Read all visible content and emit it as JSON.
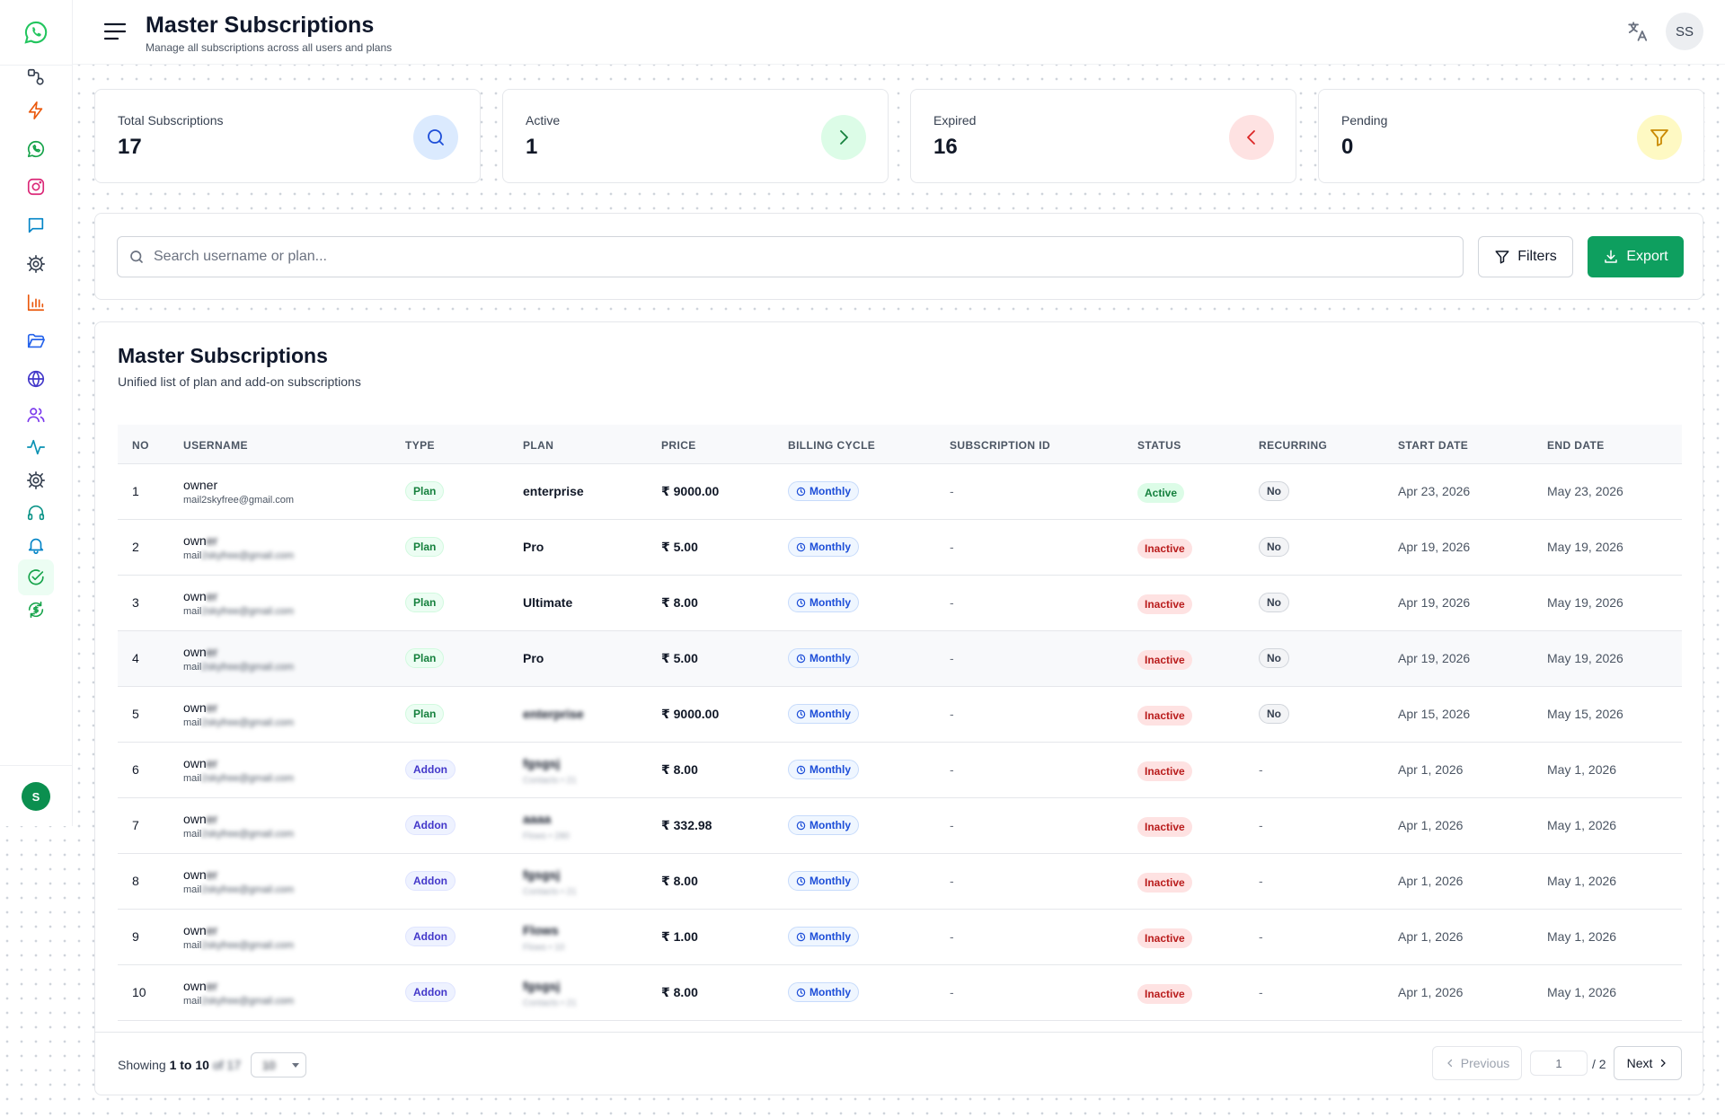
{
  "header": {
    "title": "Master Subscriptions",
    "subtitle": "Manage all subscriptions across all users and plans",
    "user_initials": "SS"
  },
  "sidebar": {
    "avatar_initial": "S",
    "items": [
      {
        "name": "sidebar-item-workflows",
        "icon": "workflow-icon",
        "color": "#374151"
      },
      {
        "name": "sidebar-item-automation",
        "icon": "lightning-icon",
        "color": "#ea580c"
      },
      {
        "name": "sidebar-item-whatsapp",
        "icon": "whatsapp-icon",
        "color": "#16a34a"
      },
      {
        "name": "sidebar-item-instagram",
        "icon": "instagram-icon",
        "color": "#db2777"
      },
      {
        "name": "sidebar-item-messages",
        "icon": "chat-icon",
        "color": "#0284c7"
      },
      {
        "name": "sidebar-item-settings",
        "icon": "gear-icon",
        "color": "#374151"
      },
      {
        "name": "sidebar-item-analytics",
        "icon": "bar-chart-icon",
        "color": "#ea580c"
      },
      {
        "name": "sidebar-item-files",
        "icon": "folder-icon",
        "color": "#2563eb"
      },
      {
        "name": "sidebar-item-web",
        "icon": "globe-icon",
        "color": "#4338ca"
      },
      {
        "name": "sidebar-item-users",
        "icon": "users-icon",
        "color": "#7c3aed"
      },
      {
        "name": "sidebar-item-activity",
        "icon": "activity-icon",
        "color": "#0891b2"
      },
      {
        "name": "sidebar-item-config",
        "icon": "gear-icon",
        "color": "#374151"
      },
      {
        "name": "sidebar-item-support",
        "icon": "headset-icon",
        "color": "#0d9488"
      },
      {
        "name": "sidebar-item-notifications",
        "icon": "bell-icon",
        "color": "#0284c7"
      },
      {
        "name": "sidebar-item-subscriptions",
        "icon": "check-circle-icon",
        "color": "#16a34a"
      },
      {
        "name": "sidebar-item-billing",
        "icon": "money-cycle-icon",
        "color": "#16a34a"
      }
    ]
  },
  "stats": [
    {
      "label": "Total Subscriptions",
      "value": "17",
      "icon": "search-icon",
      "bg": "#dbeafe",
      "fg": "#1d4ed8"
    },
    {
      "label": "Active",
      "value": "1",
      "icon": "chevron-right-icon",
      "bg": "#dcfce7",
      "fg": "#15803d"
    },
    {
      "label": "Expired",
      "value": "16",
      "icon": "chevron-left-icon",
      "bg": "#fee2e2",
      "fg": "#dc2626"
    },
    {
      "label": "Pending",
      "value": "0",
      "icon": "filter-icon",
      "bg": "#fef9c3",
      "fg": "#ca8a04"
    }
  ],
  "search": {
    "placeholder": "Search username or plan...",
    "value": "",
    "filters_label": "Filters",
    "export_label": "Export"
  },
  "table": {
    "title": "Master Subscriptions",
    "subtitle": "Unified list of plan and add-on subscriptions",
    "columns": [
      "NO",
      "USERNAME",
      "TYPE",
      "PLAN",
      "PRICE",
      "BILLING CYCLE",
      "SUBSCRIPTION ID",
      "STATUS",
      "RECURRING",
      "START DATE",
      "END DATE"
    ],
    "rows": [
      {
        "no": "1",
        "username": "owner",
        "email": "mail2skyfree@gmail.com",
        "blurred": false,
        "type": "Plan",
        "plan": "enterprise",
        "plan_sub": "",
        "plan_blur": false,
        "price": "₹ 9000.00",
        "cycle": "Monthly",
        "sub_id": "-",
        "status": "Active",
        "recurring": "No",
        "start": "Apr 23, 2026",
        "end": "May 23, 2026"
      },
      {
        "no": "2",
        "username": "owner",
        "email": "mail2skyfree@gmail.com",
        "blurred": true,
        "type": "Plan",
        "plan": "Pro",
        "plan_sub": "",
        "plan_blur": false,
        "price": "₹ 5.00",
        "cycle": "Monthly",
        "sub_id": "-",
        "status": "Inactive",
        "recurring": "No",
        "start": "Apr 19, 2026",
        "end": "May 19, 2026"
      },
      {
        "no": "3",
        "username": "owner",
        "email": "mail2skyfree@gmail.com",
        "blurred": true,
        "type": "Plan",
        "plan": "Ultimate",
        "plan_sub": "",
        "plan_blur": false,
        "price": "₹ 8.00",
        "cycle": "Monthly",
        "sub_id": "-",
        "status": "Inactive",
        "recurring": "No",
        "start": "Apr 19, 2026",
        "end": "May 19, 2026"
      },
      {
        "no": "4",
        "username": "owner",
        "email": "mail2skyfree@gmail.com",
        "blurred": true,
        "type": "Plan",
        "plan": "Pro",
        "plan_sub": "",
        "plan_blur": false,
        "price": "₹ 5.00",
        "cycle": "Monthly",
        "sub_id": "-",
        "status": "Inactive",
        "recurring": "No",
        "start": "Apr 19, 2026",
        "end": "May 19, 2026"
      },
      {
        "no": "5",
        "username": "owner",
        "email": "mail2skyfree@gmail.com",
        "blurred": true,
        "type": "Plan",
        "plan": "enterprise",
        "plan_sub": "",
        "plan_blur": true,
        "price": "₹ 9000.00",
        "cycle": "Monthly",
        "sub_id": "-",
        "status": "Inactive",
        "recurring": "No",
        "start": "Apr 15, 2026",
        "end": "May 15, 2026"
      },
      {
        "no": "6",
        "username": "owner",
        "email": "mail2skyfree@gmail.com",
        "blurred": true,
        "type": "Addon",
        "plan": "fgsgsj",
        "plan_sub": "Contacts • 21",
        "plan_blur": true,
        "price": "₹ 8.00",
        "cycle": "Monthly",
        "sub_id": "-",
        "status": "Inactive",
        "recurring": "-",
        "start": "Apr 1, 2026",
        "end": "May 1, 2026"
      },
      {
        "no": "7",
        "username": "owner",
        "email": "mail2skyfree@gmail.com",
        "blurred": true,
        "type": "Addon",
        "plan": "aaaa",
        "plan_sub": "Flows • 280",
        "plan_blur": true,
        "price": "₹ 332.98",
        "cycle": "Monthly",
        "sub_id": "-",
        "status": "Inactive",
        "recurring": "-",
        "start": "Apr 1, 2026",
        "end": "May 1, 2026"
      },
      {
        "no": "8",
        "username": "owner",
        "email": "mail2skyfree@gmail.com",
        "blurred": true,
        "type": "Addon",
        "plan": "fgsgsj",
        "plan_sub": "Contacts • 21",
        "plan_blur": true,
        "price": "₹ 8.00",
        "cycle": "Monthly",
        "sub_id": "-",
        "status": "Inactive",
        "recurring": "-",
        "start": "Apr 1, 2026",
        "end": "May 1, 2026"
      },
      {
        "no": "9",
        "username": "owner",
        "email": "mail2skyfree@gmail.com",
        "blurred": true,
        "type": "Addon",
        "plan": "Flows",
        "plan_sub": "Flows • 10",
        "plan_blur": true,
        "price": "₹ 1.00",
        "cycle": "Monthly",
        "sub_id": "-",
        "status": "Inactive",
        "recurring": "-",
        "start": "Apr 1, 2026",
        "end": "May 1, 2026"
      },
      {
        "no": "10",
        "username": "owner",
        "email": "mail2skyfree@gmail.com",
        "blurred": true,
        "type": "Addon",
        "plan": "fgsgsj",
        "plan_sub": "Contacts • 21",
        "plan_blur": true,
        "price": "₹ 8.00",
        "cycle": "Monthly",
        "sub_id": "-",
        "status": "Inactive",
        "recurring": "-",
        "start": "Apr 1, 2026",
        "end": "May 1, 2026"
      }
    ]
  },
  "pagination": {
    "showing_prefix": "Showing",
    "range": "1 to 10",
    "of_text": "of 17",
    "page_size": "10",
    "prev_label": "Previous",
    "page_value": "1",
    "total_pages": "/ 2",
    "next_label": "Next"
  }
}
